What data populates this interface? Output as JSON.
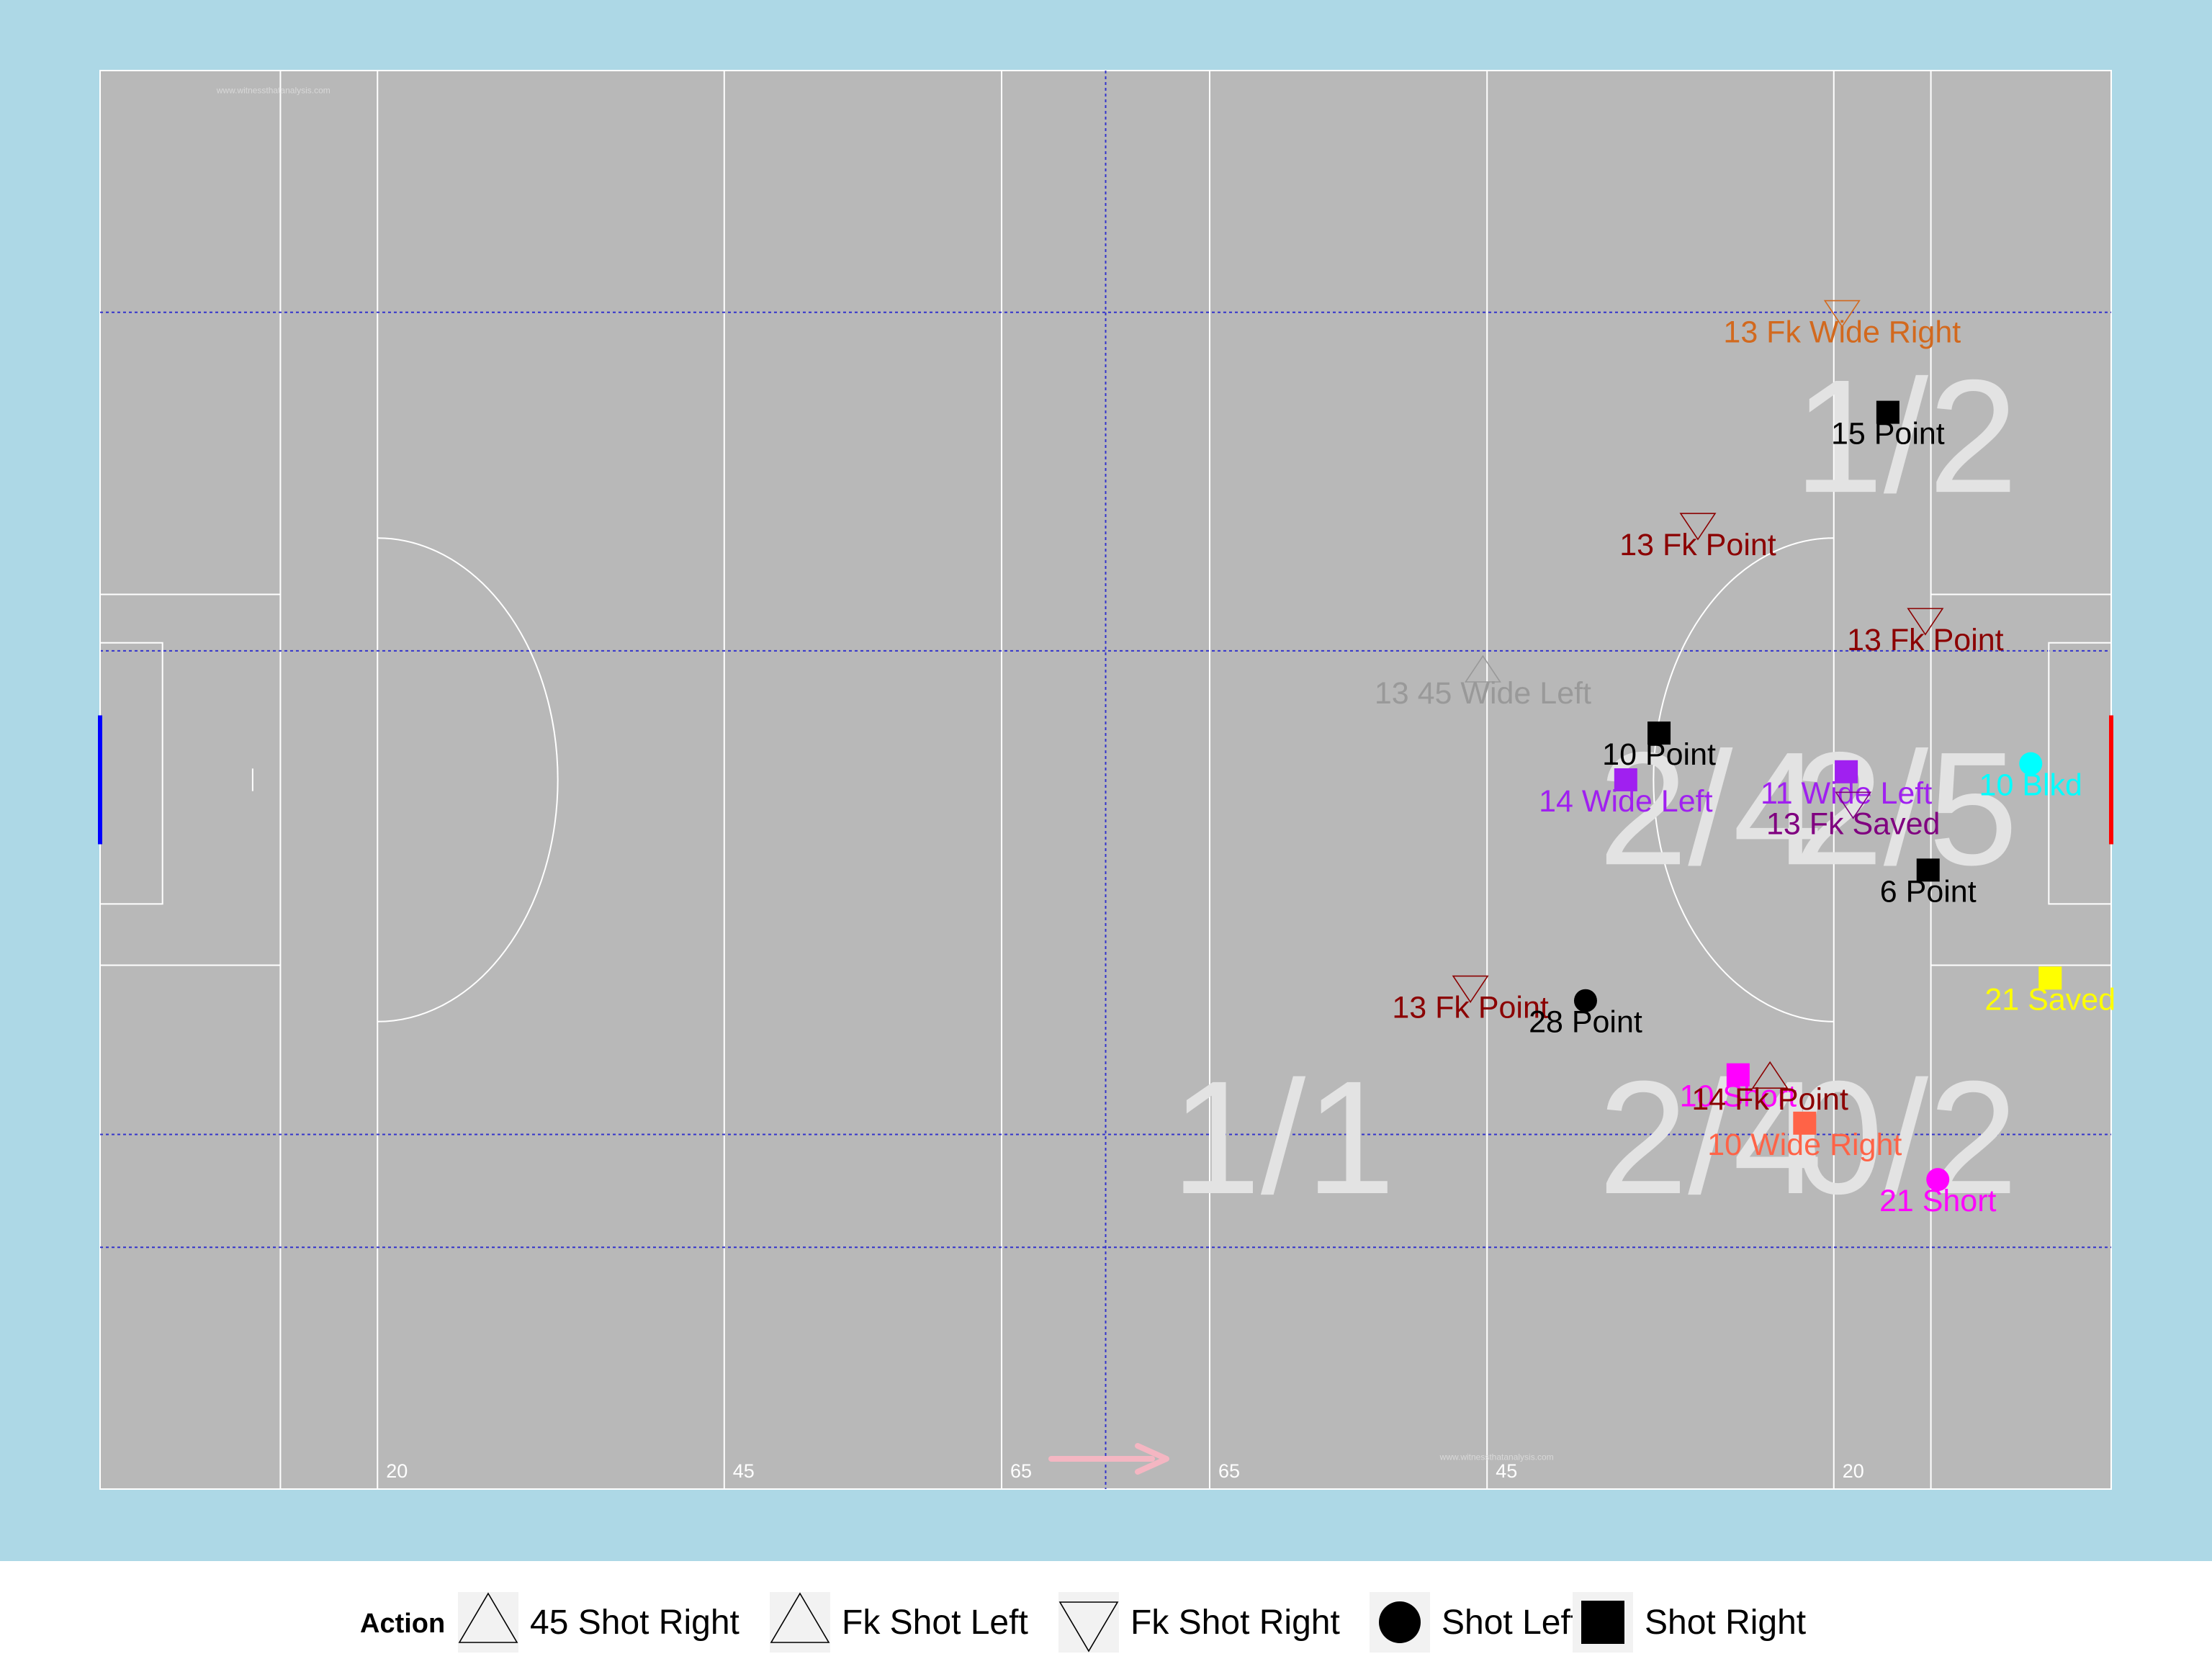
{
  "chart_data": {
    "type": "scatter",
    "x_range": [
      0,
      145
    ],
    "y_range": [
      0,
      88
    ],
    "colors": {
      "background": "#add8e6",
      "pitch": "#b8b8b8",
      "lines": "#ffffff",
      "zone_lines": "#3333cc",
      "left_goal": "#0000ff",
      "right_goal": "#ff0000",
      "zone_text": "#e3e3e3",
      "arrow": "#f4b6c2"
    },
    "distance_labels": [
      {
        "x": 20,
        "text": "20"
      },
      {
        "x": 45,
        "text": "45"
      },
      {
        "x": 65,
        "text": "65"
      },
      {
        "x": 80,
        "text": "65"
      },
      {
        "x": 100,
        "text": "45"
      },
      {
        "x": 125,
        "text": "20"
      }
    ],
    "zone_labels": [
      {
        "x": 130.2,
        "y": 65.3,
        "text": "1/2"
      },
      {
        "x": 116.1,
        "y": 42.2,
        "text": "2/4"
      },
      {
        "x": 130.2,
        "y": 42.2,
        "text": "2/5"
      },
      {
        "x": 85.3,
        "y": 21.8,
        "text": "1/1"
      },
      {
        "x": 116.1,
        "y": 21.8,
        "text": "2/4"
      },
      {
        "x": 130.2,
        "y": 21.8,
        "text": "0/2"
      }
    ],
    "watermarks": [
      {
        "x": 12.5,
        "y": 86.6,
        "text": "www.witnessthatanalysis.com"
      },
      {
        "x": 100.7,
        "y": 1.8,
        "text": "www.witnessthatanalysis.com"
      }
    ],
    "shots": [
      {
        "x": 125.6,
        "y": 73.1,
        "action": "Fk Shot Right",
        "label": "13 Fk Wide Right",
        "color": "#d2691e"
      },
      {
        "x": 128.9,
        "y": 66.8,
        "action": "Shot Right",
        "label": "15 Point",
        "color": "#000000"
      },
      {
        "x": 115.2,
        "y": 59.9,
        "action": "Fk Shot Right",
        "label": "13 Fk Point",
        "color": "#8b0000"
      },
      {
        "x": 131.6,
        "y": 54.0,
        "action": "Fk Shot Right",
        "label": "13 Fk Point",
        "color": "#8b0000"
      },
      {
        "x": 99.7,
        "y": 50.7,
        "action": "45 Shot Right",
        "label": "13 45 Wide Left",
        "color": "#999999"
      },
      {
        "x": 112.4,
        "y": 46.9,
        "action": "Shot Right",
        "label": "10 Point",
        "color": "#000000"
      },
      {
        "x": 125.9,
        "y": 44.5,
        "action": "Shot Right",
        "label": "11 Wide Left",
        "color": "#a020f0"
      },
      {
        "x": 139.2,
        "y": 45.0,
        "action": "Shot Left",
        "label": "10 Blkd",
        "color": "#00ffff"
      },
      {
        "x": 110.0,
        "y": 44.0,
        "action": "Shot Right",
        "label": "14 Wide Left",
        "color": "#a020f0"
      },
      {
        "x": 126.4,
        "y": 42.6,
        "action": "Fk Shot Right",
        "label": "13 Fk Saved",
        "color": "#800080"
      },
      {
        "x": 131.8,
        "y": 38.4,
        "action": "Shot Right",
        "label": "6 Point",
        "color": "#000000"
      },
      {
        "x": 98.8,
        "y": 31.2,
        "action": "Fk Shot Right",
        "label": "13 Fk Point",
        "color": "#8b0000"
      },
      {
        "x": 140.6,
        "y": 31.7,
        "action": "Shot Right",
        "label": "21 Saved",
        "color": "#ffff00"
      },
      {
        "x": 107.1,
        "y": 30.3,
        "action": "Shot Left",
        "label": "28 Point",
        "color": "#000000"
      },
      {
        "x": 118.1,
        "y": 25.7,
        "action": "Shot Right",
        "label": "10 Short",
        "color": "#ff00ff"
      },
      {
        "x": 120.4,
        "y": 25.5,
        "action": "Fk Shot Left",
        "label": "14 Fk Point",
        "color": "#8b0000"
      },
      {
        "x": 122.9,
        "y": 22.7,
        "action": "Shot Right",
        "label": "10 Wide Right",
        "color": "#ff6347"
      },
      {
        "x": 132.5,
        "y": 19.2,
        "action": "Shot Left",
        "label": "21 Short",
        "color": "#ff00ff"
      }
    ],
    "legend": {
      "title": "Action",
      "position": "bottom",
      "items": [
        {
          "label": "45 Shot Right",
          "shape": "triangle-up-open"
        },
        {
          "label": "Fk Shot Left",
          "shape": "triangle-up-open"
        },
        {
          "label": "Fk Shot Right",
          "shape": "triangle-down-open"
        },
        {
          "label": "Shot Left",
          "shape": "circle"
        },
        {
          "label": "Shot Right",
          "shape": "square"
        }
      ]
    }
  }
}
